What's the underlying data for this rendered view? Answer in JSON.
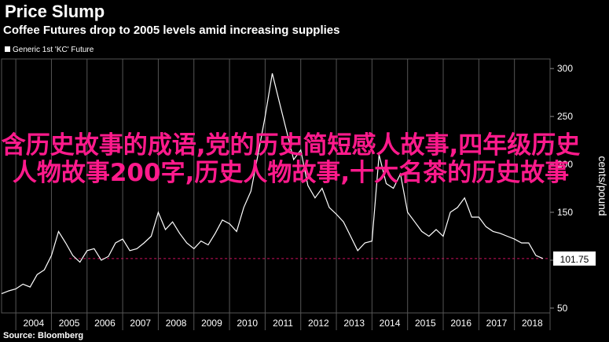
{
  "chart_data": {
    "type": "line",
    "title": "Price Slump",
    "subtitle": "Coffee Futures drop to 2005 levels amid increasing supplies",
    "legend": [
      "Generic 1st 'KC' Future"
    ],
    "legend_position": "top-left",
    "ylabel": "cents/pound",
    "y_axis_side": "right",
    "ylim": [
      45,
      310
    ],
    "yticks": [
      50,
      100,
      150,
      200,
      250,
      300
    ],
    "xlim": [
      2003.6,
      2019.0
    ],
    "xticks": [
      "2004",
      "2005",
      "2006",
      "2007",
      "2008",
      "2009",
      "2010",
      "2011",
      "2012",
      "2013",
      "2014",
      "2015",
      "2016",
      "2017",
      "2018"
    ],
    "last_value_label": "101.75",
    "reference_line": 101.75,
    "series": [
      {
        "x": [
          2003.6,
          2003.8,
          2004.0,
          2004.2,
          2004.4,
          2004.6,
          2004.8,
          2005.0,
          2005.2,
          2005.4,
          2005.6,
          2005.8,
          2006.0,
          2006.2,
          2006.4,
          2006.6,
          2006.8,
          2007.0,
          2007.2,
          2007.4,
          2007.6,
          2007.8,
          2008.0,
          2008.2,
          2008.4,
          2008.6,
          2008.8,
          2009.0,
          2009.2,
          2009.4,
          2009.6,
          2009.8,
          2010.0,
          2010.2,
          2010.4,
          2010.6,
          2010.8,
          2011.0,
          2011.2,
          2011.4,
          2011.6,
          2011.8,
          2012.0,
          2012.2,
          2012.4,
          2012.6,
          2012.8,
          2013.0,
          2013.2,
          2013.4,
          2013.6,
          2013.8,
          2014.0,
          2014.2,
          2014.4,
          2014.6,
          2014.8,
          2015.0,
          2015.2,
          2015.4,
          2015.6,
          2015.8,
          2016.0,
          2016.2,
          2016.4,
          2016.6,
          2016.8,
          2017.0,
          2017.2,
          2017.4,
          2017.6,
          2017.8,
          2018.0,
          2018.2,
          2018.4,
          2018.6,
          2018.8
        ],
        "values": [
          65,
          68,
          70,
          75,
          72,
          85,
          90,
          105,
          130,
          118,
          105,
          98,
          110,
          112,
          100,
          104,
          118,
          122,
          110,
          112,
          118,
          125,
          150,
          132,
          140,
          128,
          118,
          112,
          120,
          116,
          128,
          142,
          138,
          130,
          155,
          172,
          210,
          250,
          295,
          265,
          235,
          205,
          215,
          178,
          165,
          175,
          155,
          148,
          140,
          125,
          110,
          118,
          120,
          210,
          180,
          175,
          190,
          150,
          140,
          130,
          125,
          132,
          125,
          150,
          155,
          165,
          145,
          145,
          135,
          130,
          128,
          125,
          122,
          118,
          118,
          105,
          101.75
        ]
      }
    ]
  },
  "overlay_text": "含历史故事的成语,党的历史简短感人故事,四年级历史人物故事200字,历史人物故事,十大名茶的历史故事",
  "source": "Source: Bloomberg"
}
